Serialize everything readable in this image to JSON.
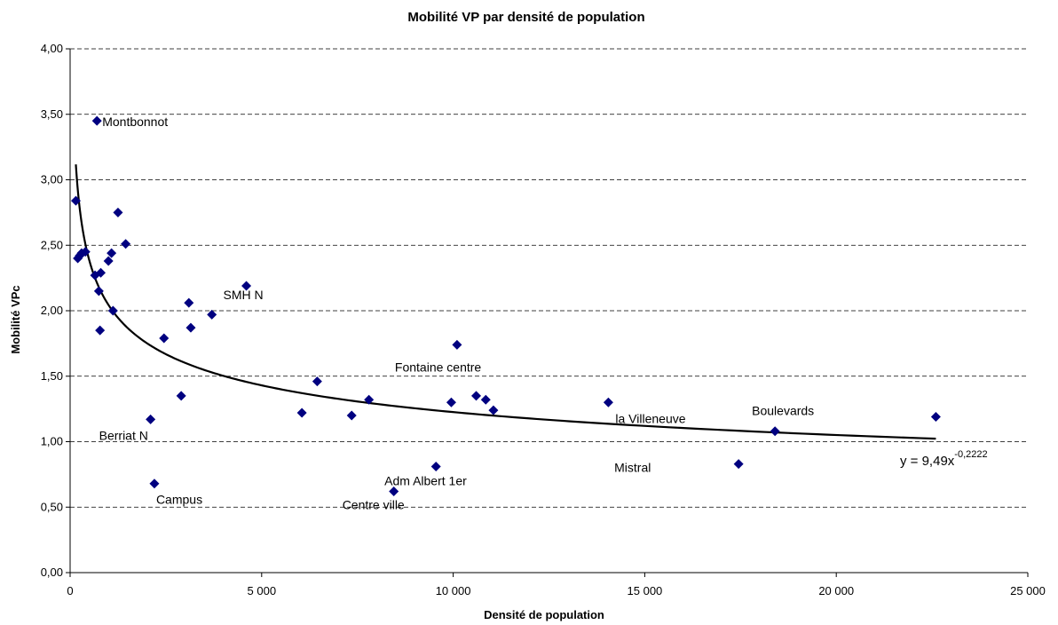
{
  "chart_data": {
    "type": "scatter",
    "title": "Mobilité VP par densité de population",
    "xlabel": "Densité de population",
    "ylabel": "Mobilité VPc",
    "xlim": [
      0,
      25000
    ],
    "ylim": [
      0,
      4
    ],
    "x_ticks": [
      0,
      5000,
      10000,
      15000,
      20000,
      25000
    ],
    "x_tick_labels": [
      "0",
      "5 000",
      "10 000",
      "15 000",
      "20 000",
      "25 000"
    ],
    "y_ticks": [
      0,
      0.5,
      1,
      1.5,
      2,
      2.5,
      3,
      3.5,
      4
    ],
    "y_tick_labels": [
      "0,00",
      "0,50",
      "1,00",
      "1,50",
      "2,00",
      "2,50",
      "3,00",
      "3,50",
      "4,00"
    ],
    "grid": "horizontal dashed",
    "marker_color": "#000080",
    "trendline": {
      "type": "power",
      "a": 9.49,
      "b": -0.2222,
      "x_from": 150,
      "x_to": 22600,
      "equation_base": "y = 9,49x",
      "equation_exponent": "-0,2222"
    },
    "points": [
      {
        "x": 700,
        "y": 3.45,
        "label": "Montbonnot"
      },
      {
        "x": 150,
        "y": 2.84
      },
      {
        "x": 200,
        "y": 2.4
      },
      {
        "x": 250,
        "y": 2.42
      },
      {
        "x": 300,
        "y": 2.44
      },
      {
        "x": 400,
        "y": 2.45
      },
      {
        "x": 650,
        "y": 2.27
      },
      {
        "x": 800,
        "y": 2.29
      },
      {
        "x": 750,
        "y": 2.15
      },
      {
        "x": 780,
        "y": 1.85
      },
      {
        "x": 1000,
        "y": 2.38
      },
      {
        "x": 1080,
        "y": 2.44
      },
      {
        "x": 1250,
        "y": 2.75
      },
      {
        "x": 1450,
        "y": 2.51
      },
      {
        "x": 1120,
        "y": 2.0
      },
      {
        "x": 2100,
        "y": 1.17,
        "label": "Berriat N"
      },
      {
        "x": 2200,
        "y": 0.68,
        "label": "Campus"
      },
      {
        "x": 2450,
        "y": 1.79
      },
      {
        "x": 2900,
        "y": 1.35
      },
      {
        "x": 3100,
        "y": 2.06
      },
      {
        "x": 3150,
        "y": 1.87
      },
      {
        "x": 3700,
        "y": 1.97
      },
      {
        "x": 4600,
        "y": 2.19,
        "label": "SMH N"
      },
      {
        "x": 6050,
        "y": 1.22
      },
      {
        "x": 6450,
        "y": 1.46
      },
      {
        "x": 7350,
        "y": 1.2
      },
      {
        "x": 7800,
        "y": 1.32
      },
      {
        "x": 8450,
        "y": 0.62,
        "label": "Centre ville"
      },
      {
        "x": 9550,
        "y": 0.81,
        "label": "Adm Albert 1er"
      },
      {
        "x": 9950,
        "y": 1.3
      },
      {
        "x": 10100,
        "y": 1.74,
        "label": "Fontaine centre"
      },
      {
        "x": 10600,
        "y": 1.35
      },
      {
        "x": 10850,
        "y": 1.32
      },
      {
        "x": 11050,
        "y": 1.24
      },
      {
        "x": 14050,
        "y": 1.3,
        "label": "la Villeneuve"
      },
      {
        "x": 17450,
        "y": 0.83,
        "label": "Mistral"
      },
      {
        "x": 18400,
        "y": 1.08,
        "label": "Boulevards"
      },
      {
        "x": 22600,
        "y": 1.19
      }
    ]
  }
}
